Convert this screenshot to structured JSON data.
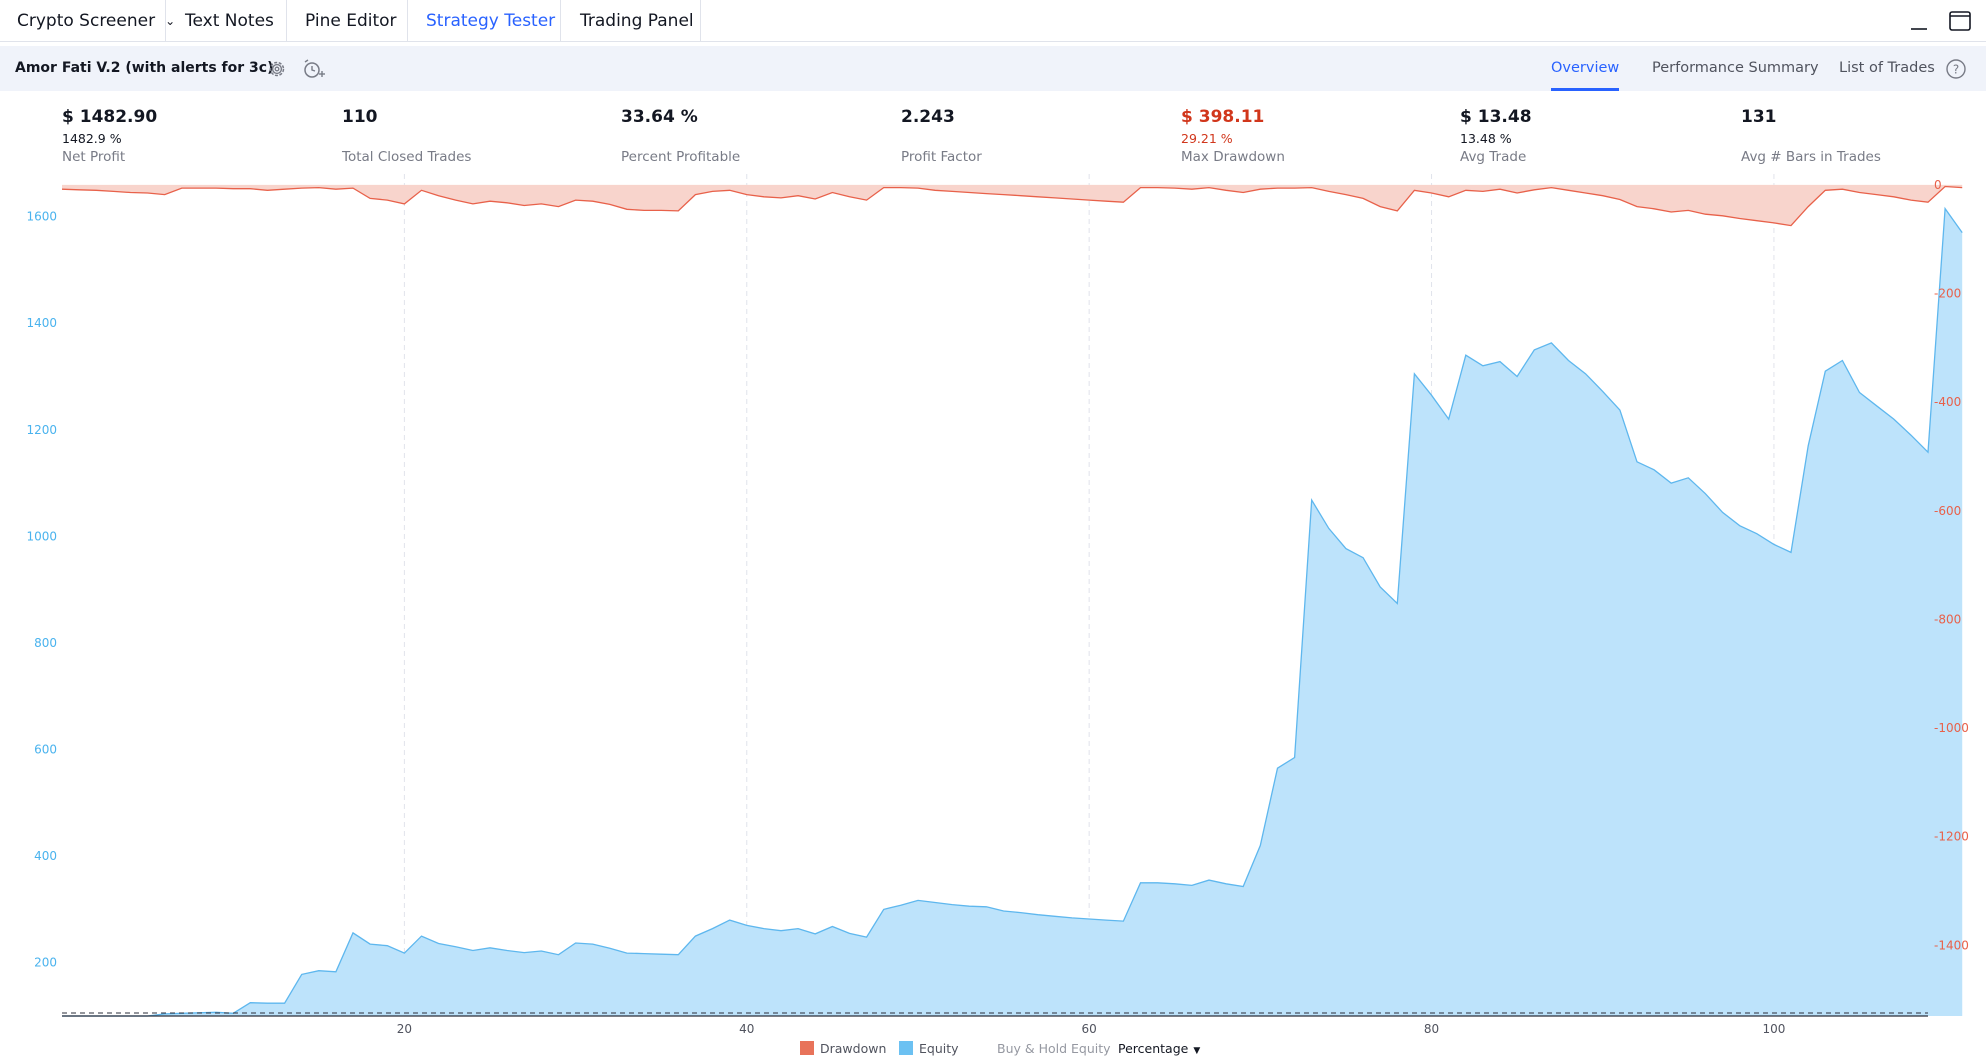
{
  "top_tabs": [
    {
      "label": "Crypto Screener",
      "has_dropdown": true,
      "active": false
    },
    {
      "label": "Text Notes",
      "active": false
    },
    {
      "label": "Pine Editor",
      "active": false
    },
    {
      "label": "Strategy Tester",
      "active": true
    },
    {
      "label": "Trading Panel",
      "active": false
    }
  ],
  "window_icons": [
    "minimize-icon",
    "maximize-icon"
  ],
  "strategy": {
    "name": "Amor Fati V.2 (with alerts for 3c)",
    "settings_icon": "gear-icon",
    "alert_icon": "add-alert-clock-icon"
  },
  "sub_tabs": [
    {
      "label": "Overview",
      "active": true
    },
    {
      "label": "Performance Summary",
      "active": false
    },
    {
      "label": "List of Trades",
      "active": false
    }
  ],
  "help_icon": "help-question-icon",
  "stats": [
    {
      "value": "$ 1482.90",
      "sub": "1482.9 %",
      "label": "Net Profit"
    },
    {
      "value": "110",
      "sub": "",
      "label": "Total Closed Trades"
    },
    {
      "value": "33.64 %",
      "sub": "",
      "label": "Percent Profitable"
    },
    {
      "value": "2.243",
      "sub": "",
      "label": "Profit Factor"
    },
    {
      "value": "$ 398.11",
      "sub": "29.21 %",
      "label": "Max Drawdown",
      "negative": true
    },
    {
      "value": "$ 13.48",
      "sub": "13.48 %",
      "label": "Avg Trade"
    },
    {
      "value": "131",
      "sub": "",
      "label": "Avg # Bars in Trades"
    }
  ],
  "colors": {
    "accent": "#2962ff",
    "equity_line": "#5eb7ee",
    "equity_fill": "#bde3fb",
    "drawdown_line": "#e8614a",
    "drawdown_fill": "#f8d4cc",
    "negative": "#d1361b",
    "left_axis": "#4ab3ee",
    "right_axis": "#e8614a"
  },
  "chart_data": {
    "type": "area",
    "x_ticks": [
      20,
      40,
      60,
      80,
      100
    ],
    "x_range": [
      0,
      109
    ],
    "y_left_ticks": [
      200,
      400,
      600,
      800,
      1000,
      1200,
      1400,
      1600
    ],
    "y_left_range": [
      100,
      1680
    ],
    "y_right_ticks": [
      0,
      -200,
      -400,
      -600,
      -800,
      -1000,
      -1200,
      -1400
    ],
    "y_right_range": [
      -1530,
      20
    ],
    "baseline": 100,
    "series": [
      {
        "name": "Equity",
        "axis": "left",
        "values": [
          100,
          100,
          100,
          100,
          100,
          100,
          104,
          105,
          106,
          107,
          105,
          125,
          124,
          124,
          178,
          185,
          183,
          256,
          235,
          232,
          218,
          250,
          236,
          230,
          223,
          228,
          223,
          219,
          222,
          215,
          237,
          235,
          227,
          218,
          217,
          216,
          215,
          250,
          264,
          280,
          270,
          264,
          260,
          264,
          254,
          268,
          255,
          248,
          300,
          308,
          317,
          313,
          309,
          306,
          305,
          297,
          294,
          290,
          287,
          284,
          282,
          280,
          278,
          350,
          350,
          348,
          345,
          355,
          348,
          343,
          420,
          565,
          585,
          1068,
          1015,
          977,
          960,
          905,
          874,
          1305,
          1265,
          1220,
          1340,
          1320,
          1328,
          1300,
          1350,
          1363,
          1330,
          1305,
          1272,
          1237,
          1140,
          1125,
          1100,
          1110,
          1080,
          1045,
          1020,
          1005,
          985,
          970,
          1170,
          1310,
          1330,
          1270,
          1245,
          1220,
          1190,
          1158,
          1615,
          1570
        ]
      },
      {
        "name": "Drawdown",
        "axis": "right",
        "values": [
          -8,
          -9,
          -10,
          -12,
          -14,
          -15,
          -18,
          -6,
          -6,
          -6,
          -7,
          -7,
          -10,
          -8,
          -6,
          -5,
          -8,
          -6,
          -25,
          -28,
          -35,
          -10,
          -20,
          -28,
          -35,
          -30,
          -33,
          -38,
          -35,
          -40,
          -28,
          -30,
          -36,
          -45,
          -47,
          -47,
          -48,
          -18,
          -12,
          -10,
          -18,
          -22,
          -24,
          -20,
          -26,
          -14,
          -22,
          -28,
          -5,
          -5,
          -6,
          -10,
          -12,
          -14,
          -16,
          -18,
          -20,
          -22,
          -24,
          -26,
          -28,
          -30,
          -32,
          -5,
          -5,
          -6,
          -8,
          -5,
          -10,
          -14,
          -8,
          -6,
          -6,
          -5,
          -12,
          -18,
          -25,
          -40,
          -48,
          -10,
          -15,
          -22,
          -10,
          -12,
          -8,
          -15,
          -9,
          -5,
          -10,
          -15,
          -20,
          -27,
          -40,
          -44,
          -50,
          -47,
          -54,
          -57,
          -62,
          -66,
          -70,
          -75,
          -40,
          -10,
          -8,
          -14,
          -18,
          -22,
          -28,
          -32,
          -3,
          -5
        ]
      },
      {
        "name": "Buy & Hold Equity",
        "axis": "left",
        "values": []
      }
    ],
    "legend": {
      "placement": "bottom-center",
      "items": [
        "Drawdown",
        "Equity",
        "Buy & Hold Equity"
      ],
      "mode_label": "Percentage"
    }
  }
}
